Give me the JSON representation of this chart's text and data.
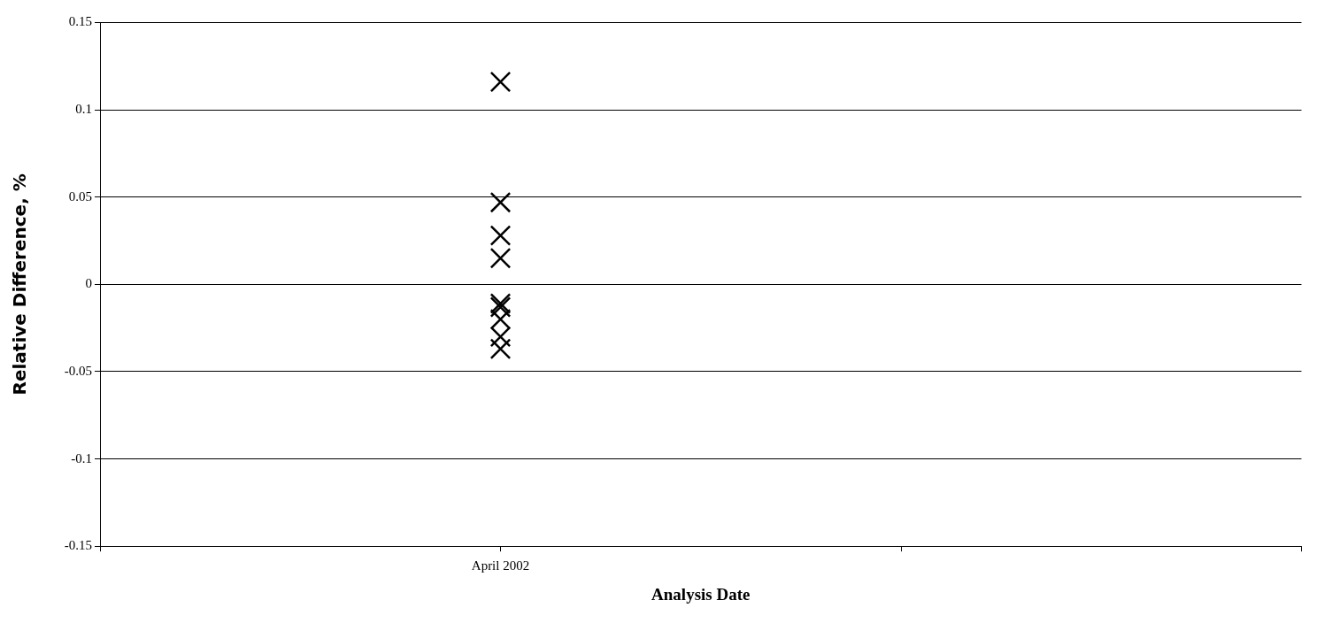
{
  "chart_data": {
    "type": "scatter",
    "xlabel": "Analysis Date",
    "ylabel": "Relative Difference, %",
    "categories": [
      null,
      "April 2002",
      null,
      null
    ],
    "series": [
      {
        "x": [
          "April 2002",
          "April 2002",
          "April 2002",
          "April 2002",
          "April 2002",
          "April 2002",
          "April 2002",
          "April 2002",
          "April 2002"
        ],
        "values": [
          0.116,
          0.047,
          0.028,
          0.015,
          -0.011,
          -0.013,
          -0.02,
          -0.03,
          -0.037
        ],
        "color": "#000000"
      }
    ],
    "ylim": [
      -0.15,
      0.15
    ],
    "yticks": [
      -0.15,
      -0.1,
      -0.05,
      0,
      0.05,
      0.1,
      0.15
    ],
    "grid": "y",
    "marker": "cross",
    "legend": false
  }
}
